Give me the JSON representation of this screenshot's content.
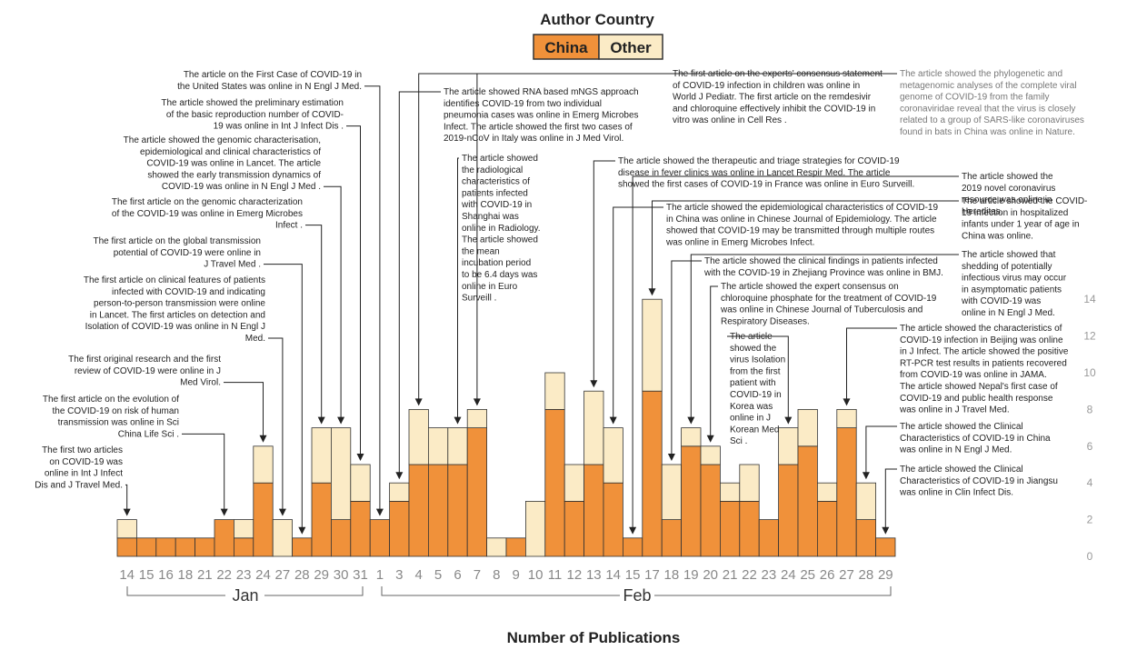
{
  "legend": {
    "title": "Author Country",
    "china_label": "China",
    "other_label": "Other"
  },
  "colors": {
    "china": "#F0913A",
    "other": "#FBEBC6",
    "edge": "#333333",
    "accent": "#E07A28"
  },
  "xaxis_title": "Number of Publications",
  "months": {
    "jan": "Jan",
    "feb": "Feb"
  },
  "chart_data": {
    "type": "bar",
    "stacked": true,
    "title": "",
    "legend_title": "Author Country",
    "legend_placement": "top-center",
    "xlabel": "Number of Publications",
    "ylim": [
      0,
      14
    ],
    "yticks": [
      0,
      2,
      4,
      6,
      8,
      10,
      12,
      14
    ],
    "grid": false,
    "categories": [
      "14",
      "15",
      "16",
      "18",
      "21",
      "22",
      "23",
      "24",
      "27",
      "28",
      "29",
      "30",
      "31",
      "1",
      "3",
      "4",
      "5",
      "6",
      "7",
      "8",
      "9",
      "10",
      "11",
      "12",
      "13",
      "14",
      "15",
      "17",
      "18",
      "19",
      "20",
      "21",
      "22",
      "23",
      "24",
      "25",
      "26",
      "27",
      "28",
      "29"
    ],
    "category_months": [
      "Jan",
      "Jan",
      "Jan",
      "Jan",
      "Jan",
      "Jan",
      "Jan",
      "Jan",
      "Jan",
      "Jan",
      "Jan",
      "Jan",
      "Jan",
      "Feb",
      "Feb",
      "Feb",
      "Feb",
      "Feb",
      "Feb",
      "Feb",
      "Feb",
      "Feb",
      "Feb",
      "Feb",
      "Feb",
      "Feb",
      "Feb",
      "Feb",
      "Feb",
      "Feb",
      "Feb",
      "Feb",
      "Feb",
      "Feb",
      "Feb",
      "Feb",
      "Feb",
      "Feb",
      "Feb",
      "Feb"
    ],
    "series": [
      {
        "name": "China",
        "values": [
          1,
          1,
          1,
          1,
          1,
          2,
          1,
          4,
          0,
          1,
          4,
          2,
          3,
          2,
          3,
          5,
          5,
          5,
          7,
          0,
          1,
          0,
          8,
          3,
          5,
          4,
          1,
          9,
          2,
          6,
          5,
          3,
          3,
          2,
          5,
          6,
          3,
          7,
          2,
          1
        ]
      },
      {
        "name": "Other",
        "values": [
          1,
          0,
          0,
          0,
          0,
          0,
          1,
          2,
          2,
          0,
          3,
          5,
          2,
          0,
          1,
          3,
          2,
          2,
          1,
          1,
          0,
          3,
          2,
          2,
          4,
          3,
          0,
          5,
          3,
          1,
          1,
          1,
          2,
          0,
          2,
          2,
          1,
          1,
          2,
          0
        ]
      }
    ]
  },
  "annotations": [
    {
      "bar": 0,
      "text": [
        "The first two articles",
        "on COVID-19 was",
        "online in Int J Infect",
        "Dis and J Travel Med."
      ]
    },
    {
      "bar": 5,
      "text": [
        "The first article on the evolution of",
        "the COVID-19 on risk of human",
        "transmission was online in Sci",
        "China Life Sci ."
      ]
    },
    {
      "bar": 7,
      "text": [
        "The first original research and the first",
        "review of COVID-19 were online in J",
        "Med Virol."
      ]
    },
    {
      "bar": 8,
      "text": [
        "The first article on clinical features of patients",
        "infected with COVID-19 and indicating",
        "person-to-person transmission were online",
        "in Lancet. The first articles on detection and",
        "Isolation of COVID-19 was online in N Engl J",
        "Med."
      ]
    },
    {
      "bar": 9,
      "text": [
        "The first article on the global transmission",
        "potential of COVID-19 were online in",
        "J Travel Med ."
      ]
    },
    {
      "bar": 10,
      "text": [
        "The first article on the genomic characterization",
        "of the COVID-19 was online in Emerg Microbes",
        "Infect ."
      ]
    },
    {
      "bar": 11,
      "text": [
        "The article showed the genomic characterisation,",
        "epidemiological and clinical characteristics of",
        "COVID-19 was online in Lancet. The article",
        "showed the early transmission dynamics of",
        "COVID-19 was online in N Engl J Med ."
      ]
    },
    {
      "bar": 12,
      "text": [
        "The article showed the preliminary estimation",
        "of the basic reproduction number of COVID-",
        "19 was online in Int J Infect Dis ."
      ]
    },
    {
      "bar": 13,
      "text": [
        "The article on the First Case of COVID-19 in",
        "the United States was online in N Engl J Med."
      ]
    },
    {
      "bar": 14,
      "text": [
        "The article showed RNA based mNGS approach",
        "identifies COVID-19 from two individual",
        "pneumonia cases was online in Emerg Microbes",
        "Infect. The article showed the first two cases of",
        "2019-nCoV in Italy was online in J Med Virol."
      ]
    },
    {
      "bar": 15,
      "text": [
        "The first article on the experts' consensus statement",
        "of COVID-19 infection in children was online in",
        "World J Pediatr. The first article on the remdesivir",
        "and chloroquine effectively inhibit the COVID-19 in",
        "vitro was online in Cell Res ."
      ]
    },
    {
      "bar": 17,
      "text": [
        "The article showed",
        "the radiological",
        "characteristics of",
        "patients infected",
        "with COVID-19 in",
        "Shanghai was",
        "online in Radiology.",
        "The article showed",
        "the mean",
        "incubation period",
        "to be 6.4 days was",
        "online in Euro",
        "Surveill ."
      ]
    },
    {
      "bar": 18,
      "text": [
        "The article showed the phylogenetic and",
        "metagenomic analyses of the complete viral",
        "genome of COVID-19 from the family",
        "coronaviridae reveal that the virus is closely",
        "related to a group of SARS-like coronaviruses",
        "found in bats in China was online in Nature."
      ]
    },
    {
      "bar": 24,
      "text": [
        "The article showed the therapeutic and triage strategies for COVID-19",
        "disease in fever clinics was online in Lancet Respir Med. The article",
        "showed the first cases of COVID-19 in France was online in Euro Surveill."
      ]
    },
    {
      "bar": 25,
      "text": [
        "The article showed the epidemiological characteristics of COVID-19",
        "in China was online in Chinese Journal of Epidemiology. The article",
        "showed that COVID-19 may be transmitted through multiple routes",
        "was online in Emerg Microbes Infect."
      ]
    },
    {
      "bar": 26,
      "text": [
        "The article showed the",
        "2019 novel coronavirus",
        "resource was online in",
        "Hereditas."
      ]
    },
    {
      "bar": 27,
      "text": [
        "The article showed the COVID-",
        "19 infection in hospitalized",
        "infants under 1 year of age in",
        "China was online."
      ]
    },
    {
      "bar": 28,
      "text": [
        "The article showed the clinical findings in patients infected",
        "with the COVID-19 in Zhejiang Province was online in BMJ."
      ]
    },
    {
      "bar": 29,
      "text": [
        "The article showed that",
        "shedding of potentially",
        "infectious virus may occur",
        "in asymptomatic patients",
        "with COVID-19 was",
        "online in N Engl J Med."
      ]
    },
    {
      "bar": 30,
      "text": [
        "The article showed the expert consensus on",
        "chloroquine phosphate for the treatment of COVID-19",
        "was online in Chinese Journal of Tuberculosis and",
        "Respiratory Diseases."
      ]
    },
    {
      "bar": 34,
      "text": [
        "The article",
        "showed the",
        "virus Isolation",
        "from the first",
        "patient with",
        "COVID-19 in",
        "Korea was",
        "online in J",
        "Korean Med",
        "Sci ."
      ]
    },
    {
      "bar": 37,
      "text": [
        "The article showed the characteristics of",
        "COVID-19 infection in Beijing was online",
        "in J Infect. The article showed the positive",
        "RT-PCR test results in patients recovered",
        "from COVID-19 was online in JAMA.",
        "The article showed Nepal's first case of",
        "COVID-19 and public health response",
        "was online in J Travel Med."
      ]
    },
    {
      "bar": 38,
      "text": [
        "The article showed the Clinical",
        "Characteristics of COVID-19 in China",
        "was online in N Engl J Med."
      ]
    },
    {
      "bar": 39,
      "text": [
        "The article showed the Clinical",
        "Characteristics of COVID-19 in Jiangsu",
        "was online in Clin Infect Dis."
      ]
    }
  ]
}
